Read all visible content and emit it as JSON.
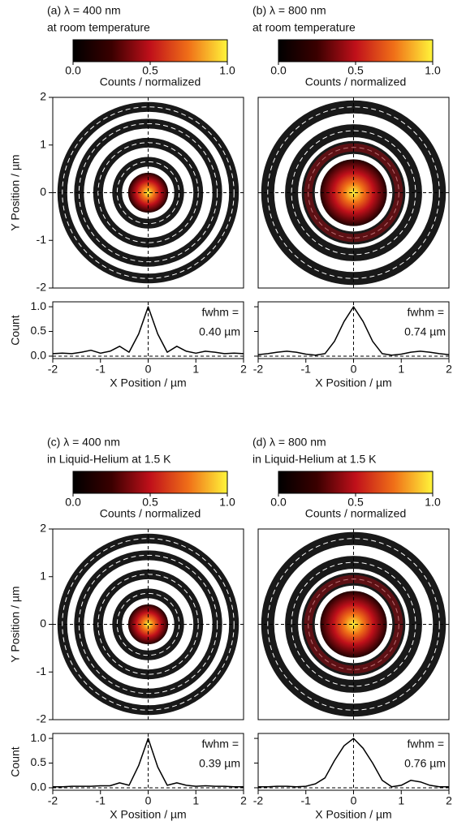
{
  "chart_data": [
    {
      "type": "line",
      "title": "(a) λ = 400 nm",
      "subtitle": "at room temperature",
      "colorbar": {
        "label": "Counts / normalized",
        "lim": [
          0,
          1
        ],
        "ticks": [
          {
            "value": 0,
            "label": "0.0"
          },
          {
            "value": 0.5,
            "label": "0.5"
          },
          {
            "value": 1,
            "label": "1.0"
          }
        ]
      },
      "image": {
        "xlim": [
          -2,
          2
        ],
        "ylim": [
          -2,
          2
        ],
        "yticks": [
          -2,
          -1,
          0,
          1,
          2
        ],
        "ylabel": "Y Position / µm"
      },
      "x": [
        -2,
        -1.8,
        -1.6,
        -1.4,
        -1.2,
        -1,
        -0.8,
        -0.6,
        -0.4,
        -0.2,
        0,
        0.2,
        0.4,
        0.6,
        0.8,
        1,
        1.2,
        1.4,
        1.6,
        1.8,
        2
      ],
      "values": [
        0.05,
        0.06,
        0.05,
        0.08,
        0.12,
        0.06,
        0.1,
        0.2,
        0.08,
        0.45,
        1.0,
        0.45,
        0.08,
        0.2,
        0.1,
        0.06,
        0.1,
        0.08,
        0.05,
        0.06,
        0.05
      ],
      "color": "#000000",
      "xlim": [
        -2,
        2
      ],
      "ylim": [
        -0.05,
        1.1
      ],
      "xticks": [
        -2,
        -1,
        0,
        1,
        2
      ],
      "yticks": [
        {
          "value": 0,
          "label": "0.0"
        },
        {
          "value": 0.5,
          "label": "0.5"
        },
        {
          "value": 1,
          "label": "1.0"
        }
      ],
      "xlabel": "X Position / µm",
      "ylabel": "Count",
      "annotation": "fwhm =",
      "fwhm": "0.40 µm"
    },
    {
      "type": "line",
      "title": "(b) λ = 800 nm",
      "subtitle": "at room temperature",
      "colorbar": {
        "label": "Counts / normalized",
        "lim": [
          0,
          1
        ],
        "ticks": [
          {
            "value": 0,
            "label": "0.0"
          },
          {
            "value": 0.5,
            "label": "0.5"
          },
          {
            "value": 1,
            "label": "1.0"
          }
        ]
      },
      "image": {
        "xlim": [
          -2,
          2
        ],
        "ylim": [
          -2,
          2
        ]
      },
      "x": [
        -2,
        -1.8,
        -1.6,
        -1.4,
        -1.2,
        -1,
        -0.8,
        -0.6,
        -0.4,
        -0.2,
        0,
        0.2,
        0.4,
        0.6,
        0.8,
        1,
        1.2,
        1.4,
        1.6,
        1.8,
        2
      ],
      "values": [
        0.03,
        0.05,
        0.08,
        0.1,
        0.08,
        0.04,
        0.02,
        0.05,
        0.3,
        0.7,
        1.0,
        0.7,
        0.3,
        0.05,
        0.02,
        0.04,
        0.08,
        0.1,
        0.08,
        0.05,
        0.03
      ],
      "color": "#000000",
      "xlim": [
        -2,
        2
      ],
      "ylim": [
        -0.05,
        1.1
      ],
      "xticks": [
        -2,
        -1,
        0,
        1,
        2
      ],
      "yticks": [
        {
          "value": 0,
          "label": "0.0"
        },
        {
          "value": 0.5,
          "label": "0.5"
        },
        {
          "value": 1,
          "label": "1.0"
        }
      ],
      "xlabel": "X Position / µm",
      "annotation": "fwhm =",
      "fwhm": "0.74 µm"
    },
    {
      "type": "line",
      "title": "(c) λ = 400 nm",
      "subtitle": "in Liquid-Helium at 1.5 K",
      "colorbar": {
        "label": "Counts / normalized",
        "lim": [
          0,
          1
        ],
        "ticks": [
          {
            "value": 0,
            "label": "0.0"
          },
          {
            "value": 0.5,
            "label": "0.5"
          },
          {
            "value": 1,
            "label": "1.0"
          }
        ]
      },
      "image": {
        "xlim": [
          -2,
          2
        ],
        "ylim": [
          -2,
          2
        ],
        "yticks": [
          -2,
          -1,
          0,
          1,
          2
        ],
        "ylabel": "Y Position / µm"
      },
      "x": [
        -2,
        -1.8,
        -1.6,
        -1.4,
        -1.2,
        -1,
        -0.8,
        -0.6,
        -0.4,
        -0.2,
        0,
        0.2,
        0.4,
        0.6,
        0.8,
        1,
        1.2,
        1.4,
        1.6,
        1.8,
        2
      ],
      "values": [
        0.02,
        0.02,
        0.03,
        0.03,
        0.03,
        0.04,
        0.04,
        0.1,
        0.05,
        0.45,
        1.0,
        0.42,
        0.05,
        0.1,
        0.05,
        0.03,
        0.04,
        0.03,
        0.03,
        0.02,
        0.02
      ],
      "color": "#000000",
      "xlim": [
        -2,
        2
      ],
      "ylim": [
        -0.05,
        1.1
      ],
      "xticks": [
        -2,
        -1,
        0,
        1,
        2
      ],
      "yticks": [
        {
          "value": 0,
          "label": "0.0"
        },
        {
          "value": 0.5,
          "label": "0.5"
        },
        {
          "value": 1,
          "label": "1.0"
        }
      ],
      "xlabel": "X Position / µm",
      "ylabel": "Count",
      "annotation": "fwhm =",
      "fwhm": "0.39 µm"
    },
    {
      "type": "line",
      "title": "(d) λ = 800 nm",
      "subtitle": "in Liquid-Helium at 1.5 K",
      "colorbar": {
        "label": "Counts / normalized",
        "lim": [
          0,
          1
        ],
        "ticks": [
          {
            "value": 0,
            "label": "0.0"
          },
          {
            "value": 0.5,
            "label": "0.5"
          },
          {
            "value": 1,
            "label": "1.0"
          }
        ]
      },
      "image": {
        "xlim": [
          -2,
          2
        ],
        "ylim": [
          -2,
          2
        ]
      },
      "x": [
        -2,
        -1.8,
        -1.6,
        -1.4,
        -1.2,
        -1,
        -0.8,
        -0.6,
        -0.4,
        -0.2,
        0,
        0.2,
        0.4,
        0.6,
        0.8,
        1,
        1.2,
        1.4,
        1.6,
        1.8,
        2
      ],
      "values": [
        0.02,
        0.02,
        0.03,
        0.03,
        0.02,
        0.03,
        0.08,
        0.2,
        0.55,
        0.85,
        1.0,
        0.8,
        0.5,
        0.15,
        0.02,
        0.05,
        0.15,
        0.12,
        0.05,
        0.02,
        0.02
      ],
      "color": "#000000",
      "xlim": [
        -2,
        2
      ],
      "ylim": [
        -0.05,
        1.1
      ],
      "xticks": [
        -2,
        -1,
        0,
        1,
        2
      ],
      "yticks": [
        {
          "value": 0,
          "label": "0.0"
        },
        {
          "value": 0.5,
          "label": "0.5"
        },
        {
          "value": 1,
          "label": "1.0"
        }
      ],
      "xlabel": "X Position / µm",
      "annotation": "fwhm =",
      "fwhm": "0.76 µm"
    }
  ]
}
